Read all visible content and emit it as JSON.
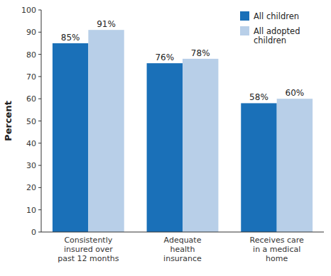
{
  "chart_data": {
    "type": "bar",
    "ylabel": "Percent",
    "categories": [
      "Consistently\ninsured over\npast 12 months",
      "Adequate\nhealth\ninsurance",
      "Receives care\nin a medical\nhome"
    ],
    "series": [
      {
        "name": "All children",
        "color": "#1a70b8",
        "values": [
          85,
          76,
          58
        ],
        "value_labels": [
          "85%",
          "76%",
          "58%"
        ]
      },
      {
        "name": "All adopted\nchildren",
        "color": "#b8cfe8",
        "values": [
          91,
          78,
          60
        ],
        "value_labels": [
          "91%",
          "78%",
          "60%"
        ]
      }
    ],
    "ylim": [
      0,
      100
    ],
    "yticks": [
      0,
      10,
      20,
      30,
      40,
      50,
      60,
      70,
      80,
      90,
      100
    ],
    "data_labels": true,
    "grid": false,
    "legend": "upper right"
  }
}
